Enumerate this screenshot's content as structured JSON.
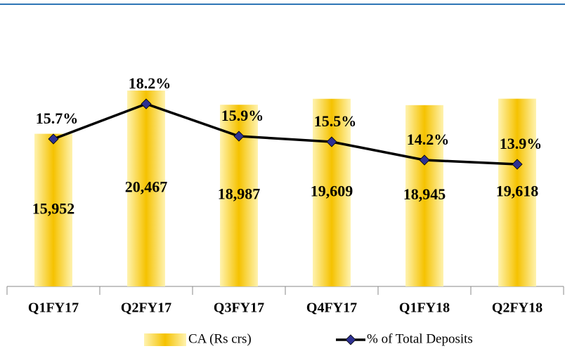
{
  "chart_data": {
    "type": "bar",
    "categories": [
      "Q1FY17",
      "Q2FY17",
      "Q3FY17",
      "Q4FY17",
      "Q1FY18",
      "Q2FY18"
    ],
    "ylim": [
      0,
      27000
    ],
    "y2lim": [
      5.2,
      23.6
    ],
    "series": [
      {
        "name": "CA (Rs crs)",
        "type": "bar",
        "color": "#f5c200",
        "values": [
          15952,
          20467,
          18987,
          19609,
          18945,
          19618
        ],
        "value_labels": [
          "15,952",
          "20,467",
          "18,987",
          "19,609",
          "18,945",
          "19,618"
        ]
      },
      {
        "name": "% of Total Deposits",
        "type": "line",
        "axis": "y2",
        "color": "#000000",
        "marker_color": "#2e3192",
        "values": [
          15.7,
          18.2,
          15.9,
          15.5,
          14.2,
          13.9
        ],
        "value_labels": [
          "15.7%",
          "18.2%",
          "15.9%",
          "15.5%",
          "14.2%",
          "13.9%"
        ]
      }
    ],
    "legend": "bottom"
  }
}
